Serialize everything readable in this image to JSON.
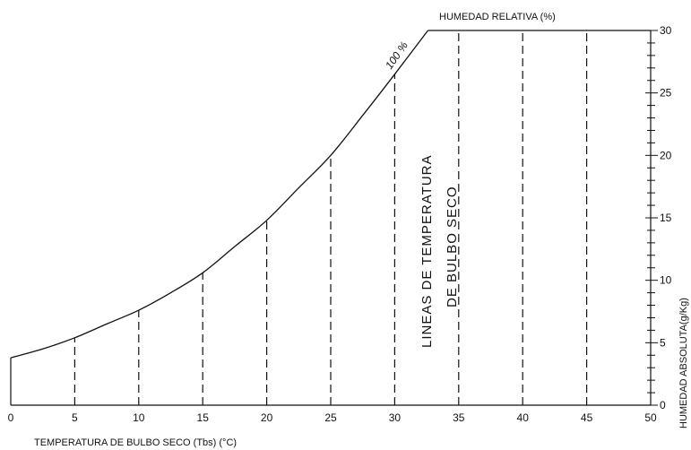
{
  "chart_data": {
    "type": "line",
    "title": "",
    "xlabel": "TEMPERATURA DE BULBO SECO (Tbs) (°C)",
    "ylabel": "HUMEDAD ABSOLUTA(g/Kg)",
    "top_label": "HUMEDAD RELATIVA (%)",
    "xlim": [
      0,
      50
    ],
    "ylim": [
      0,
      30
    ],
    "x_ticks": [
      "0",
      "5",
      "10",
      "15",
      "20",
      "25",
      "30",
      "35",
      "40",
      "45",
      "50"
    ],
    "y_ticks": [
      "0",
      "5",
      "10",
      "15",
      "20",
      "25",
      "30"
    ],
    "series": [
      {
        "name": "100 %",
        "x": [
          0,
          2.5,
          5,
          7.5,
          10,
          12.5,
          15,
          17.5,
          20,
          22.5,
          25,
          27.5,
          30,
          32.6
        ],
        "values": [
          3.8,
          4.5,
          5.4,
          6.5,
          7.6,
          9.0,
          10.6,
          12.7,
          14.8,
          17.4,
          20.0,
          23.2,
          26.5,
          30
        ]
      }
    ],
    "dry_bulb_lines": {
      "label": "LINEAS DE TEMPERATURA DE BULBO SECO",
      "x": [
        5,
        10,
        15,
        20,
        25,
        30,
        35,
        40,
        45
      ]
    },
    "annotations": {
      "saturation_curve": "100 %",
      "lines_label_1": "LINEAS DE TEMPERATURA",
      "lines_label_2": "DE BULBO SECO"
    },
    "grid": false,
    "legend": "none"
  },
  "colors": {
    "ink": "#111111",
    "background": "#ffffff"
  }
}
